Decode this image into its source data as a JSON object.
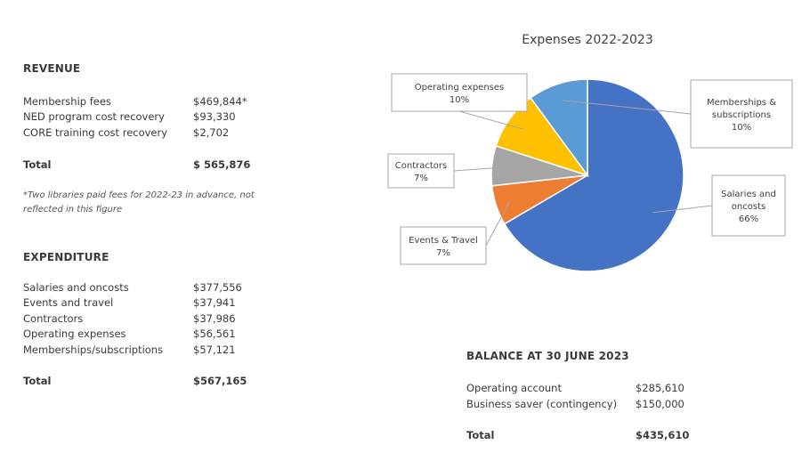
{
  "revenue": {
    "heading": "REVENUE",
    "items": [
      {
        "label": "Membership fees",
        "value": "$469,844*"
      },
      {
        "label": "NED program cost recovery",
        "value": "$93,330"
      },
      {
        "label": "CORE training cost recovery",
        "value": "$2,702"
      }
    ],
    "total_label": "Total",
    "total_value": "$ 565,876",
    "footnote": "*Two libraries paid fees for 2022-23 in advance, not reflected in this figure"
  },
  "expenditure": {
    "heading": "EXPENDITURE",
    "items": [
      {
        "label": "Salaries and oncosts",
        "value": "$377,556"
      },
      {
        "label": "Events and travel",
        "value": "$37,941"
      },
      {
        "label": "Contractors",
        "value": "$37,986"
      },
      {
        "label": "Operating expenses",
        "value": "$56,561"
      },
      {
        "label": "Memberships/subscriptions",
        "value": "$57,121"
      }
    ],
    "total_label": "Total",
    "total_value": "$567,165"
  },
  "balance": {
    "heading": "BALANCE AT 30 JUNE 2023",
    "items": [
      {
        "label": "Operating account",
        "value": "$285,610"
      },
      {
        "label": "Business saver (contingency)",
        "value": "$150,000"
      }
    ],
    "total_label": "Total",
    "total_value": "$435,610"
  },
  "chart_data": {
    "type": "pie",
    "title": "Expenses 2022-2023",
    "slices": [
      {
        "name": "Salaries and oncosts",
        "label_lines": [
          "Salaries and",
          "oncosts"
        ],
        "percent_label": "66%",
        "value": 377556,
        "color": "#4472C4"
      },
      {
        "name": "Events & Travel",
        "label_lines": [
          "Events & Travel"
        ],
        "percent_label": "7%",
        "value": 37941,
        "color": "#ED7D31"
      },
      {
        "name": "Contractors",
        "label_lines": [
          "Contractors"
        ],
        "percent_label": "7%",
        "value": 37986,
        "color": "#A5A5A5"
      },
      {
        "name": "Operating expenses",
        "label_lines": [
          "Operating expenses"
        ],
        "percent_label": "10%",
        "value": 56561,
        "color": "#FFC000"
      },
      {
        "name": "Memberships & subscriptions",
        "label_lines": [
          "Memberships &",
          "subscriptions"
        ],
        "percent_label": "10%",
        "value": 57121,
        "color": "#5B9BD5"
      }
    ]
  }
}
